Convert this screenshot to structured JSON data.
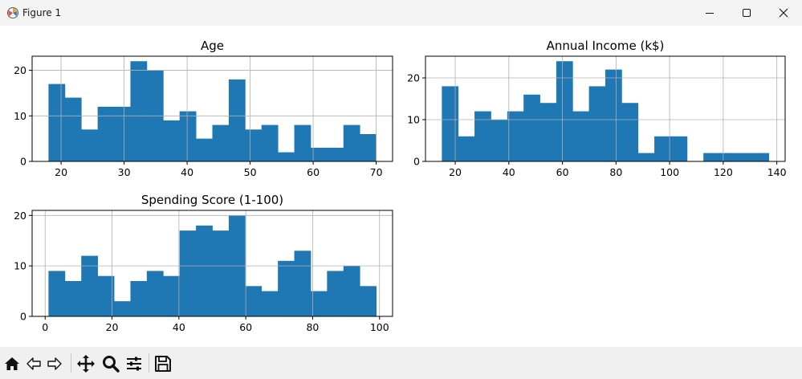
{
  "window": {
    "title": "Figure 1",
    "minimize_icon": "minimize-icon",
    "maximize_icon": "maximize-icon",
    "close_icon": "close-icon"
  },
  "toolbar": {
    "icons": [
      "home-icon",
      "back-arrow-icon",
      "forward-arrow-icon",
      "pan-move-icon",
      "zoom-magnifier-icon",
      "configure-subplots-icon",
      "save-floppy-icon"
    ]
  },
  "colors": {
    "bar": "#1f77b4",
    "grid": "#b0b0b0",
    "axis": "#000000"
  },
  "chart_data": [
    {
      "type": "bar",
      "title": "Age",
      "grid": true,
      "xlim": [
        15.4,
        72.6
      ],
      "ylim": [
        0,
        23.1
      ],
      "xticks": [
        20,
        30,
        40,
        50,
        60,
        70
      ],
      "yticks": [
        0,
        10,
        20
      ],
      "bin_edges": [
        18,
        20.6,
        23.2,
        25.8,
        28.4,
        31,
        33.6,
        36.2,
        38.8,
        41.4,
        44,
        46.6,
        49.2,
        51.8,
        54.4,
        57,
        59.6,
        62.2,
        64.8,
        67.4,
        70
      ],
      "values": [
        17,
        14,
        7,
        12,
        12,
        22,
        20,
        9,
        11,
        5,
        8,
        18,
        7,
        8,
        2,
        8,
        3,
        3,
        8,
        6
      ]
    },
    {
      "type": "bar",
      "title": "Annual Income (k$)",
      "grid": true,
      "xlim": [
        8.9,
        143.1
      ],
      "ylim": [
        0,
        25.2
      ],
      "xticks": [
        20,
        40,
        60,
        80,
        100,
        120,
        140
      ],
      "yticks": [
        0,
        10,
        20
      ],
      "bin_edges": [
        15,
        21.1,
        27.2,
        33.3,
        39.4,
        45.5,
        51.6,
        57.7,
        63.8,
        69.9,
        76,
        82.1,
        88.2,
        94.3,
        100.4,
        106.5,
        112.6,
        118.7,
        124.8,
        130.9,
        137
      ],
      "values": [
        18,
        6,
        12,
        10,
        12,
        16,
        14,
        24,
        12,
        18,
        22,
        14,
        2,
        6,
        6,
        0,
        2,
        2,
        2,
        2
      ]
    },
    {
      "type": "bar",
      "title": "Spending Score (1-100)",
      "grid": true,
      "xlim": [
        -3.9,
        103.9
      ],
      "ylim": [
        0,
        21
      ],
      "xticks": [
        0,
        20,
        40,
        60,
        80,
        100
      ],
      "yticks": [
        0,
        10,
        20
      ],
      "bin_edges": [
        1,
        5.9,
        10.8,
        15.7,
        20.6,
        25.5,
        30.4,
        35.3,
        40.2,
        45.1,
        50,
        54.9,
        59.8,
        64.7,
        69.6,
        74.5,
        79.4,
        84.3,
        89.2,
        94.1,
        99
      ],
      "values": [
        9,
        7,
        12,
        8,
        3,
        7,
        9,
        8,
        17,
        18,
        17,
        20,
        6,
        5,
        11,
        13,
        5,
        9,
        10,
        6
      ]
    }
  ]
}
